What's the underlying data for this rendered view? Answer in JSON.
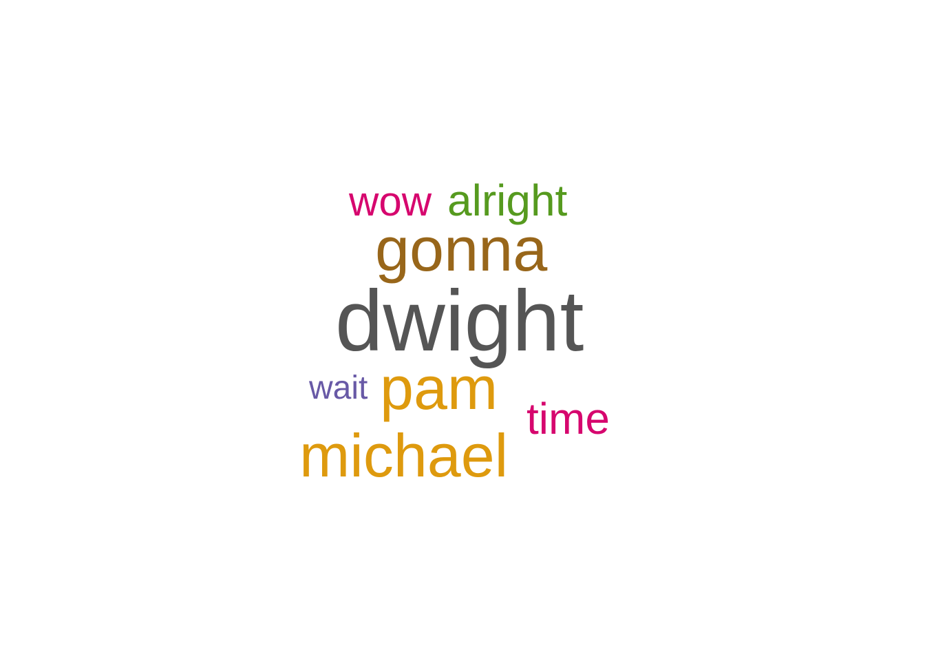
{
  "chart_data": {
    "type": "wordcloud",
    "words": [
      {
        "text": "dwight",
        "color": "#555555"
      },
      {
        "text": "gonna",
        "color": "#98661A"
      },
      {
        "text": "michael",
        "color": "#DE9A0E"
      },
      {
        "text": "pam",
        "color": "#DE9A0E"
      },
      {
        "text": "alright",
        "color": "#569A1F"
      },
      {
        "text": "time",
        "color": "#D6066E"
      },
      {
        "text": "wow",
        "color": "#D6066E"
      },
      {
        "text": "wait",
        "color": "#6859A6"
      }
    ]
  }
}
